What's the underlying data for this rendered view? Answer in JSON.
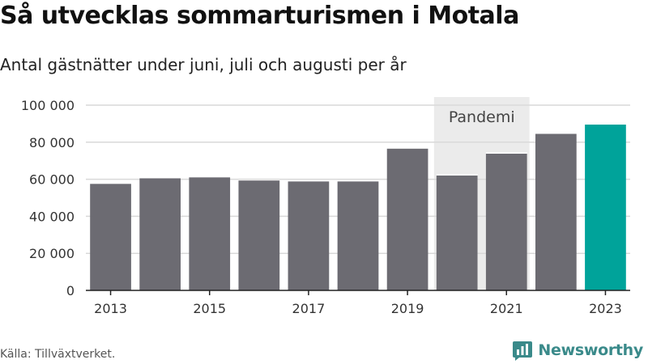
{
  "title": "Så utvecklas sommarturismen i Motala",
  "subtitle": "Antal gästnätter under juni, juli och augusti per år",
  "source": "Källa: Tillväxtverket.",
  "brand": {
    "name": "Newsworthy",
    "icon": "newsworthy-logo-icon",
    "color": "#3a8a8a"
  },
  "colors": {
    "bar": "#6c6b72",
    "highlight": "#00a39a",
    "band": "#ebebeb",
    "grid": "#d9d9d9",
    "axis": "#222222"
  },
  "chart_data": {
    "type": "bar",
    "title": "Så utvecklas sommarturismen i Motala",
    "subtitle": "Antal gästnätter under juni, juli och augusti per år",
    "xlabel": "",
    "ylabel": "",
    "categories": [
      "2013",
      "2014",
      "2015",
      "2016",
      "2017",
      "2018",
      "2019",
      "2020",
      "2021",
      "2022",
      "2023"
    ],
    "values": [
      57500,
      60500,
      61000,
      59300,
      58800,
      58800,
      76500,
      62000,
      73800,
      84500,
      89500
    ],
    "ylim": [
      0,
      100000
    ],
    "yticks": [
      0,
      20000,
      40000,
      60000,
      80000,
      100000
    ],
    "ytick_labels": [
      "0",
      "20 000",
      "40 000",
      "60 000",
      "80 000",
      "100 000"
    ],
    "xtick_labels": [
      "2013",
      "",
      "2015",
      "",
      "2017",
      "",
      "2019",
      "",
      "2021",
      "",
      "2023"
    ],
    "highlight_category": "2023",
    "annotation": {
      "label": "Pandemi",
      "from": "2020",
      "to": "2021"
    },
    "grid": true,
    "legend": "none"
  }
}
